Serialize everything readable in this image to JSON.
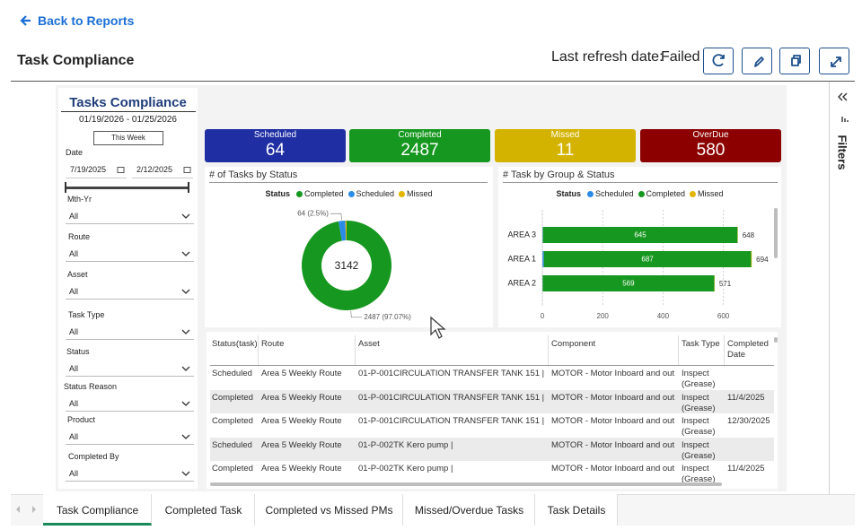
{
  "nav": {
    "back": "Back to Reports"
  },
  "header": {
    "title": "Task Compliance",
    "refresh_label": "Last refresh date:",
    "refresh_status": "Failed"
  },
  "slicers": {
    "title": "Tasks Compliance",
    "range": "01/19/2026 - 01/25/2026",
    "button": "This Week",
    "date_label": "Date",
    "date_from": "7/19/2025",
    "date_to": "2/12/2025",
    "dropdowns": [
      {
        "label": "Mth-Yr",
        "value": "All"
      },
      {
        "label": "Route",
        "value": "All"
      },
      {
        "label": "Asset",
        "value": "All"
      },
      {
        "label": "Task Type",
        "value": "All"
      },
      {
        "label": "Status",
        "value": "All"
      },
      {
        "label": "Status Reason",
        "value": "All"
      },
      {
        "label": "Product",
        "value": "All"
      },
      {
        "label": "Completed By",
        "value": "All"
      }
    ]
  },
  "kpis": [
    {
      "label": "Scheduled",
      "value": 64,
      "color": "#1f2fa3"
    },
    {
      "label": "Completed",
      "value": 2487,
      "color": "#16971f"
    },
    {
      "label": "Missed",
      "value": 11,
      "color": "#d3b300"
    },
    {
      "label": "OverDue",
      "value": 580,
      "color": "#8c0000"
    }
  ],
  "chart_data": [
    {
      "type": "donut",
      "title": "# of Tasks by Status",
      "legend_title": "Status",
      "categories": [
        "Completed",
        "Scheduled",
        "Missed"
      ],
      "values": [
        2487,
        64,
        11
      ],
      "value_labels": [
        "2487 (97.07%)",
        "64 (2.5%)",
        null
      ],
      "colors": [
        "#16971f",
        "#2b8ce8",
        "#e4b400"
      ],
      "center_label": 3142
    },
    {
      "type": "bar",
      "orientation": "horizontal",
      "stacked": true,
      "title": "# Task by Group & Status",
      "legend_title": "Status",
      "categories": [
        "AREA 3",
        "AREA 1",
        "AREA 2"
      ],
      "series": [
        {
          "name": "Scheduled",
          "color": "#2b8ce8",
          "values": [
            2,
            5,
            1
          ],
          "data_labels": false
        },
        {
          "name": "Completed",
          "color": "#16971f",
          "values": [
            645,
            687,
            569
          ],
          "data_labels": true
        },
        {
          "name": "Missed",
          "color": "#e4b400",
          "values": [
            1,
            2,
            1
          ],
          "data_labels": false
        }
      ],
      "totals": [
        648,
        694,
        571
      ],
      "xlim": [
        0,
        750
      ],
      "xticks": [
        0,
        200,
        400,
        600
      ],
      "grid": true
    }
  ],
  "table": {
    "columns": [
      "Status(task)",
      "Route",
      "Asset",
      "Component",
      "Task Type",
      "Completed Date"
    ],
    "rows": [
      [
        "Scheduled",
        "Area 5 Weekly Route",
        "01-P-001CIRCULATION TRANSFER TANK 151 |",
        "MOTOR - Motor Inboard and out",
        "Inspect (Grease)",
        null
      ],
      [
        "Completed",
        "Area 5 Weekly Route",
        "01-P-001CIRCULATION TRANSFER TANK 151 |",
        "MOTOR - Motor Inboard and out",
        "Inspect (Grease)",
        "11/4/2025"
      ],
      [
        "Completed",
        "Area 5 Weekly Route",
        "01-P-001CIRCULATION TRANSFER TANK 151 |",
        "MOTOR - Motor Inboard and out",
        "Inspect (Grease)",
        "12/30/2025"
      ],
      [
        "Scheduled",
        "Area 5 Weekly Route",
        "01-P-002TK Kero pump |",
        "MOTOR - Motor Inboard and out",
        "Inspect (Grease)",
        null
      ],
      [
        "Completed",
        "Area 5 Weekly Route",
        "01-P-002TK Kero pump |",
        "MOTOR - Motor Inboard and out",
        "Inspect (Grease)",
        "11/4/2025"
      ]
    ]
  },
  "tabs": [
    "Task Compliance",
    "Completed Task",
    "Completed vs Missed PMs",
    "Missed/Overdue Tasks",
    "Task Details"
  ],
  "filters_pane": {
    "label": "Filters"
  }
}
